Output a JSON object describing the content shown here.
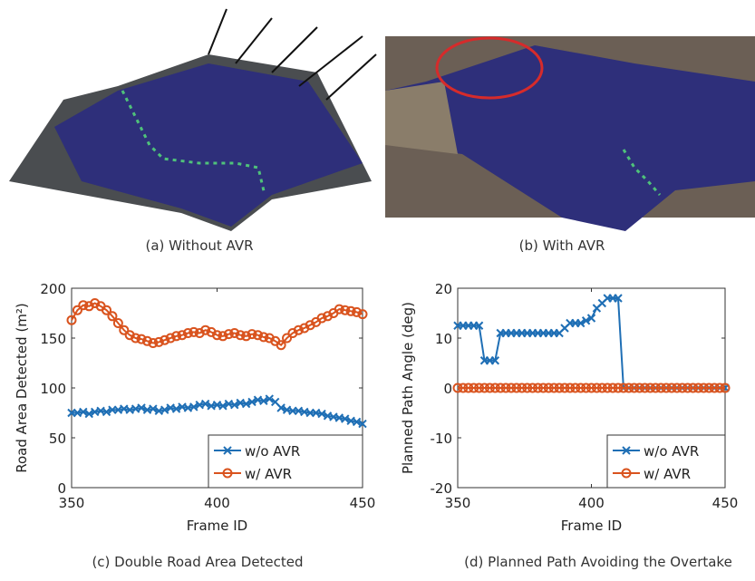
{
  "panels": [
    {
      "caption": "(a) Without AVR"
    },
    {
      "caption": "(b) With AVR"
    },
    {
      "caption": "(c) Double Road Area Detected"
    },
    {
      "caption": "(d) Planned Path Avoiding the Overtake"
    }
  ],
  "chart_data": [
    {
      "type": "line",
      "xlabel": "Frame ID",
      "ylabel": "Road Area Detected (m²)",
      "xlim": [
        350,
        450
      ],
      "xticks": [
        350,
        400,
        450
      ],
      "ylim": [
        0,
        200
      ],
      "yticks": [
        0,
        50,
        100,
        150,
        200
      ],
      "legend": "lower right",
      "x": [
        350,
        352,
        354,
        356,
        358,
        360,
        362,
        364,
        366,
        368,
        370,
        372,
        374,
        376,
        378,
        380,
        382,
        384,
        386,
        388,
        390,
        392,
        394,
        396,
        398,
        400,
        402,
        404,
        406,
        408,
        410,
        412,
        414,
        416,
        418,
        420,
        422,
        424,
        426,
        428,
        430,
        432,
        434,
        436,
        438,
        440,
        442,
        444,
        446,
        448,
        450
      ],
      "series": [
        {
          "name": "w/o AVR",
          "color": "#1f6fb5",
          "marker": "x",
          "values": [
            75,
            75,
            76,
            74,
            76,
            77,
            76,
            78,
            78,
            79,
            78,
            79,
            80,
            78,
            79,
            77,
            78,
            80,
            79,
            81,
            80,
            81,
            83,
            84,
            82,
            83,
            82,
            84,
            83,
            85,
            84,
            86,
            88,
            87,
            89,
            86,
            80,
            78,
            77,
            77,
            76,
            75,
            75,
            74,
            72,
            71,
            70,
            69,
            67,
            66,
            64
          ]
        },
        {
          "name": "w/ AVR",
          "color": "#d9531e",
          "marker": "o",
          "values": [
            168,
            178,
            183,
            182,
            185,
            182,
            178,
            172,
            165,
            158,
            153,
            150,
            149,
            147,
            145,
            146,
            148,
            150,
            152,
            153,
            155,
            156,
            155,
            158,
            156,
            153,
            152,
            154,
            155,
            153,
            152,
            154,
            153,
            151,
            150,
            147,
            143,
            150,
            155,
            158,
            160,
            163,
            166,
            170,
            172,
            175,
            179,
            178,
            177,
            176,
            174
          ]
        }
      ]
    },
    {
      "type": "line",
      "xlabel": "Frame ID",
      "ylabel": "Planned Path Angle (deg)",
      "xlim": [
        350,
        450
      ],
      "xticks": [
        350,
        400,
        450
      ],
      "ylim": [
        -20,
        20
      ],
      "yticks": [
        -20,
        -10,
        0,
        10,
        20
      ],
      "legend": "lower right",
      "x": [
        350,
        352,
        354,
        356,
        358,
        360,
        362,
        364,
        366,
        368,
        370,
        372,
        374,
        376,
        378,
        380,
        382,
        384,
        386,
        388,
        390,
        392,
        394,
        396,
        398,
        400,
        402,
        404,
        406,
        408,
        410,
        412,
        414,
        416,
        418,
        420,
        422,
        424,
        426,
        428,
        430,
        432,
        434,
        436,
        438,
        440,
        442,
        444,
        446,
        448,
        450
      ],
      "series": [
        {
          "name": "w/o AVR",
          "color": "#1f6fb5",
          "marker": "x",
          "values": [
            12.5,
            12.5,
            12.5,
            12.5,
            12.5,
            5.5,
            5.5,
            5.5,
            11,
            11,
            11,
            11,
            11,
            11,
            11,
            11,
            11,
            11,
            11,
            11,
            12,
            13,
            13,
            13,
            13.5,
            14,
            16,
            17,
            18,
            18,
            18,
            0,
            0,
            0,
            0,
            0,
            0,
            0,
            0,
            0,
            0,
            0,
            0,
            0,
            0,
            0,
            0,
            0,
            0,
            0,
            0
          ]
        },
        {
          "name": "w/ AVR",
          "color": "#d9531e",
          "marker": "o",
          "values": [
            0,
            0,
            0,
            0,
            0,
            0,
            0,
            0,
            0,
            0,
            0,
            0,
            0,
            0,
            0,
            0,
            0,
            0,
            0,
            0,
            0,
            0,
            0,
            0,
            0,
            0,
            0,
            0,
            0,
            0,
            0,
            0,
            0,
            0,
            0,
            0,
            0,
            0,
            0,
            0,
            0,
            0,
            0,
            0,
            0,
            0,
            0,
            0,
            0,
            0,
            0
          ]
        }
      ]
    }
  ]
}
